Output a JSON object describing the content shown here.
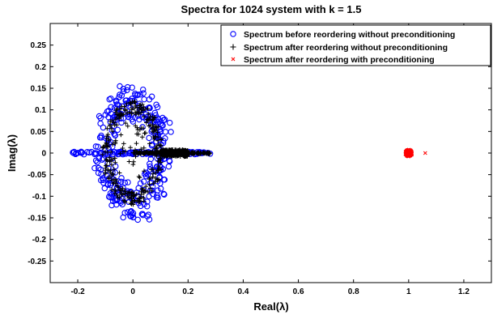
{
  "chart_data": {
    "type": "scatter",
    "title": "Spectra for 1024 system with k = 1.5",
    "xlabel": "Real(λ)",
    "ylabel": "Imag(λ)",
    "xlim": [
      -0.3,
      1.3
    ],
    "ylim": [
      -0.3,
      0.3
    ],
    "xticks": [
      -0.2,
      0,
      0.2,
      0.4,
      0.6,
      0.8,
      1,
      1.2
    ],
    "xtick_labels": [
      "-0.2",
      "0",
      "0.2",
      "0.4",
      "0.6",
      "0.8",
      "1",
      "1.2"
    ],
    "yticks": [
      0.25,
      0.2,
      0.15,
      0.1,
      0.05,
      0,
      -0.05,
      -0.1,
      -0.15,
      -0.2,
      -0.25
    ],
    "ytick_labels": [
      "0.25",
      "0.2",
      "0.15",
      "0.1",
      "0.05",
      "0",
      "-0.05",
      "-0.1",
      "-0.15",
      "-0.2",
      "-0.25"
    ],
    "grid": false,
    "legend_position": "top-right",
    "series": [
      {
        "name": "Spectrum before reordering without preconditioning",
        "marker": "circle",
        "color": "#0000ff",
        "ring_center": [
          0.0,
          0.0
        ],
        "ring_radius_x": [
          0.07,
          0.13
        ],
        "ring_radius_y": [
          0.08,
          0.16
        ],
        "real_axis_range": [
          -0.22,
          0.28
        ],
        "x_band": [
          -0.1,
          0.12
        ]
      },
      {
        "name": "Spectrum after reordering without preconditioning",
        "marker": "plus",
        "color": "#000000",
        "ring_center": [
          0.0,
          0.0
        ],
        "ring_radius_x": [
          0.08,
          0.11
        ],
        "ring_radius_y": [
          0.09,
          0.12
        ],
        "real_axis_range": [
          0.0,
          0.28
        ],
        "dense_segment": [
          0.1,
          0.2
        ]
      },
      {
        "name": "Spectrum after reordering with preconditioning",
        "marker": "x",
        "color": "#ff0000",
        "cluster_center": [
          1.0,
          0.0
        ],
        "cluster_spread": [
          0.012,
          0.008
        ],
        "outlier": [
          1.06,
          0.0
        ]
      }
    ]
  }
}
